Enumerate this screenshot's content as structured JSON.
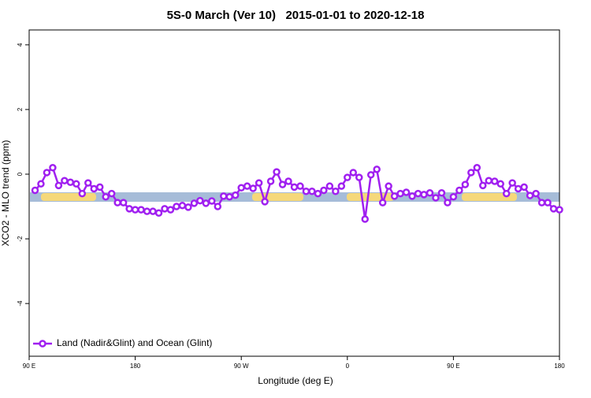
{
  "chart_data": {
    "type": "line",
    "title": "5S-0 March (Ver 10)   2015-01-01 to 2020-12-18",
    "x_label": "Longitude (deg E)",
    "y_label": "XCO2 - MLO trend (ppm)",
    "x": [
      95,
      100,
      105,
      110,
      115,
      120,
      125,
      130,
      135,
      140,
      145,
      150,
      155,
      160,
      165,
      170,
      175,
      180,
      185,
      190,
      195,
      200,
      205,
      210,
      215,
      220,
      225,
      230,
      235,
      240,
      245,
      250,
      255,
      260,
      265,
      270,
      275,
      280,
      285,
      290,
      295,
      300,
      305,
      310,
      315,
      320,
      325,
      330,
      335,
      340,
      345,
      350,
      355,
      360,
      365,
      370,
      375,
      380,
      385,
      390,
      395,
      400,
      405,
      410,
      415,
      420,
      425,
      430,
      435,
      440,
      445,
      450,
      455,
      460,
      465,
      470,
      475,
      480,
      485,
      490,
      495,
      500,
      505,
      510,
      515,
      520,
      525,
      530,
      535,
      540
    ],
    "series": [
      {
        "name": "Land (Nadir&Glint) and Ocean (Glint)",
        "color": "#a020f0",
        "values": [
          -0.5,
          -0.3,
          0.05,
          0.2,
          -0.35,
          -0.2,
          -0.25,
          -0.3,
          -0.6,
          -0.27,
          -0.45,
          -0.4,
          -0.7,
          -0.6,
          -0.88,
          -0.88,
          -1.07,
          -1.1,
          -1.1,
          -1.15,
          -1.15,
          -1.2,
          -1.07,
          -1.1,
          -1.0,
          -0.97,
          -1.02,
          -0.9,
          -0.82,
          -0.9,
          -0.83,
          -1.0,
          -0.68,
          -0.7,
          -0.65,
          -0.42,
          -0.37,
          -0.44,
          -0.27,
          -0.85,
          -0.22,
          0.07,
          -0.32,
          -0.22,
          -0.4,
          -0.37,
          -0.53,
          -0.53,
          -0.6,
          -0.5,
          -0.37,
          -0.53,
          -0.37,
          -0.1,
          0.05,
          -0.1,
          -1.39,
          -0.02,
          0.15,
          -0.88,
          -0.37,
          -0.68,
          -0.6,
          -0.56,
          -0.68,
          -0.6,
          -0.63,
          -0.58,
          -0.73,
          -0.58,
          -0.88,
          -0.7,
          -0.5,
          -0.32,
          0.05,
          0.2,
          -0.35,
          -0.2,
          -0.22,
          -0.3,
          -0.6,
          -0.27,
          -0.45,
          -0.4,
          -0.66,
          -0.6,
          -0.88,
          -0.88,
          -1.07,
          -1.1
        ]
      }
    ],
    "xlim": [
      90,
      540
    ],
    "xticks": [
      {
        "value": 90,
        "label": "90 E"
      },
      {
        "value": 180,
        "label": "180"
      },
      {
        "value": 270,
        "label": "90 W"
      },
      {
        "value": 360,
        "label": "0"
      },
      {
        "value": 450,
        "label": "90 E"
      },
      {
        "value": 540,
        "label": "180"
      }
    ],
    "ylim": [
      -5.63,
      4.46
    ],
    "yticks": [
      -4,
      -2,
      0,
      2,
      4
    ],
    "legend": "bottom-left"
  }
}
